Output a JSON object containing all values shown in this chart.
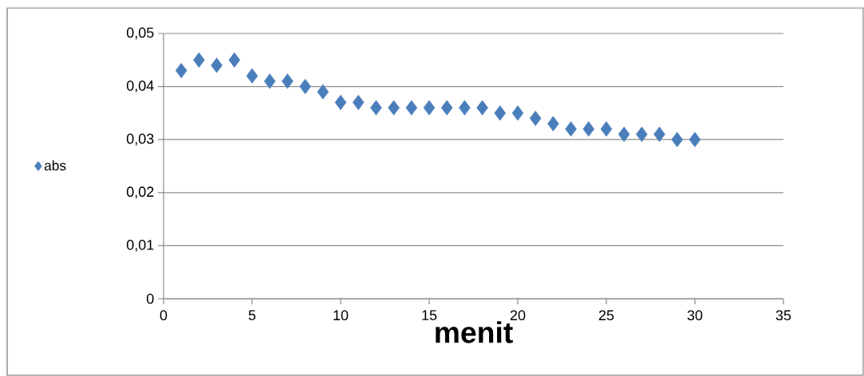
{
  "chart_data": {
    "type": "scatter",
    "xlabel": "menit",
    "x": [
      1,
      2,
      3,
      4,
      5,
      6,
      7,
      8,
      9,
      10,
      11,
      12,
      13,
      14,
      15,
      16,
      17,
      18,
      19,
      20,
      21,
      22,
      23,
      24,
      25,
      26,
      27,
      28,
      29,
      30
    ],
    "series": [
      {
        "name": "abs",
        "color": "#4a7ebb",
        "values": [
          0.043,
          0.045,
          0.044,
          0.045,
          0.042,
          0.041,
          0.041,
          0.04,
          0.039,
          0.037,
          0.037,
          0.036,
          0.036,
          0.036,
          0.036,
          0.036,
          0.036,
          0.036,
          0.035,
          0.035,
          0.034,
          0.033,
          0.032,
          0.032,
          0.032,
          0.031,
          0.031,
          0.031,
          0.03,
          0.03
        ]
      }
    ],
    "xlim": [
      0,
      35
    ],
    "ylim": [
      0,
      0.05
    ],
    "xticks": [
      0,
      5,
      10,
      15,
      20,
      25,
      30,
      35
    ],
    "yticks": [
      {
        "value": 0,
        "label": "0"
      },
      {
        "value": 0.01,
        "label": "0,01"
      },
      {
        "value": 0.02,
        "label": "0,02"
      },
      {
        "value": 0.03,
        "label": "0,03"
      },
      {
        "value": 0.04,
        "label": "0,04"
      },
      {
        "value": 0.05,
        "label": "0,05"
      }
    ],
    "grid": "y",
    "legend": "left",
    "marker": "diamond"
  }
}
